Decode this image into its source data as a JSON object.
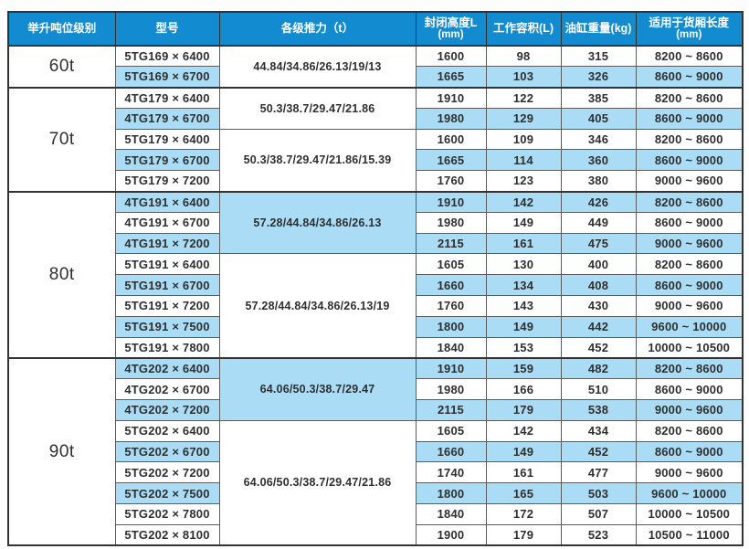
{
  "colors": {
    "header_bg": "#128bd1",
    "header_text": "#ffffff",
    "row_shade_blue": "#aadcf5",
    "row_white": "#ffffff",
    "border_dark": "#333333",
    "border_inner": "#5c5c5c",
    "body_text": "#2f2f2f"
  },
  "table": {
    "headers": {
      "tonnage": "举升吨位级别",
      "model": "型号",
      "thrust": "各级推力（t）",
      "closed_height": "封闭高度L",
      "closed_height_unit": "(mm)",
      "working_volume": "工作容积(L)",
      "cylinder_weight": "油缸重量(kg)",
      "box_length": "适用于货厢长度",
      "box_length_unit": "(mm)"
    },
    "sections": [
      {
        "tonnage": "60t",
        "groups": [
          {
            "thrust": "44.84/34.86/26.13/19/13",
            "thrust_shaded": false,
            "rows": [
              {
                "model": "5TG169 × 6400",
                "closed_height": "1600",
                "working_volume": "98",
                "cylinder_weight": "315",
                "box_length": "8200 ~ 8600",
                "shaded": false
              },
              {
                "model": "5TG169 × 6700",
                "closed_height": "1665",
                "working_volume": "103",
                "cylinder_weight": "326",
                "box_length": "8600 ~ 9000",
                "shaded": true
              }
            ]
          }
        ]
      },
      {
        "tonnage": "70t",
        "groups": [
          {
            "thrust": "50.3/38.7/29.47/21.86",
            "thrust_shaded": false,
            "rows": [
              {
                "model": "4TG179 × 6400",
                "closed_height": "1910",
                "working_volume": "122",
                "cylinder_weight": "385",
                "box_length": "8200 ~ 8600",
                "shaded": false
              },
              {
                "model": "4TG179 × 6700",
                "closed_height": "1980",
                "working_volume": "129",
                "cylinder_weight": "405",
                "box_length": "8600 ~ 9000",
                "shaded": true
              }
            ]
          },
          {
            "thrust": "50.3/38.7/29.47/21.86/15.39",
            "thrust_shaded": false,
            "rows": [
              {
                "model": "5TG179 × 6400",
                "closed_height": "1600",
                "working_volume": "109",
                "cylinder_weight": "346",
                "box_length": "8200 ~ 8600",
                "shaded": false
              },
              {
                "model": "5TG179 × 6700",
                "closed_height": "1665",
                "working_volume": "114",
                "cylinder_weight": "360",
                "box_length": "8600 ~ 9000",
                "shaded": true
              },
              {
                "model": "5TG179 × 7200",
                "closed_height": "1760",
                "working_volume": "123",
                "cylinder_weight": "380",
                "box_length": "9000 ~ 9600",
                "shaded": false
              }
            ]
          }
        ]
      },
      {
        "tonnage": "80t",
        "groups": [
          {
            "thrust": "57.28/44.84/34.86/26.13",
            "thrust_shaded": true,
            "rows": [
              {
                "model": "4TG191 × 6400",
                "closed_height": "1910",
                "working_volume": "142",
                "cylinder_weight": "426",
                "box_length": "8200 ~ 8600",
                "shaded": true
              },
              {
                "model": "4TG191 × 6700",
                "closed_height": "1980",
                "working_volume": "149",
                "cylinder_weight": "449",
                "box_length": "8600 ~ 9000",
                "shaded": false
              },
              {
                "model": "4TG191 × 7200",
                "closed_height": "2115",
                "working_volume": "161",
                "cylinder_weight": "475",
                "box_length": "9000 ~ 9600",
                "shaded": true
              }
            ]
          },
          {
            "thrust": "57.28/44.84/34.86/26.13/19",
            "thrust_shaded": false,
            "rows": [
              {
                "model": "5TG191 × 6400",
                "closed_height": "1605",
                "working_volume": "130",
                "cylinder_weight": "400",
                "box_length": "8200 ~ 8600",
                "shaded": false
              },
              {
                "model": "5TG191 × 6700",
                "closed_height": "1660",
                "working_volume": "134",
                "cylinder_weight": "408",
                "box_length": "8600 ~ 9000",
                "shaded": true
              },
              {
                "model": "5TG191 × 7200",
                "closed_height": "1760",
                "working_volume": "143",
                "cylinder_weight": "430",
                "box_length": "9000 ~ 9600",
                "shaded": false
              },
              {
                "model": "5TG191 × 7500",
                "closed_height": "1800",
                "working_volume": "149",
                "cylinder_weight": "442",
                "box_length": "9600 ~ 10000",
                "shaded": true
              },
              {
                "model": "5TG191 × 7800",
                "closed_height": "1840",
                "working_volume": "153",
                "cylinder_weight": "452",
                "box_length": "10000 ~ 10500",
                "shaded": false
              }
            ]
          }
        ]
      },
      {
        "tonnage": "90t",
        "groups": [
          {
            "thrust": "64.06/50.3/38.7/29.47",
            "thrust_shaded": true,
            "rows": [
              {
                "model": "4TG202 × 6400",
                "closed_height": "1910",
                "working_volume": "159",
                "cylinder_weight": "482",
                "box_length": "8200 ~ 8600",
                "shaded": true
              },
              {
                "model": "4TG202 × 6700",
                "closed_height": "1980",
                "working_volume": "166",
                "cylinder_weight": "510",
                "box_length": "8600 ~ 9000",
                "shaded": false
              },
              {
                "model": "4TG202 × 7200",
                "closed_height": "2115",
                "working_volume": "179",
                "cylinder_weight": "538",
                "box_length": "9000 ~ 9600",
                "shaded": true
              }
            ]
          },
          {
            "thrust": "64.06/50.3/38.7/29.47/21.86",
            "thrust_shaded": false,
            "rows": [
              {
                "model": "5TG202 × 6400",
                "closed_height": "1605",
                "working_volume": "142",
                "cylinder_weight": "434",
                "box_length": "8200 ~ 8600",
                "shaded": false
              },
              {
                "model": "5TG202 × 6700",
                "closed_height": "1660",
                "working_volume": "149",
                "cylinder_weight": "452",
                "box_length": "8600 ~ 9000",
                "shaded": true
              },
              {
                "model": "5TG202 × 7200",
                "closed_height": "1740",
                "working_volume": "161",
                "cylinder_weight": "477",
                "box_length": "9000 ~ 9600",
                "shaded": false
              },
              {
                "model": "5TG202 × 7500",
                "closed_height": "1800",
                "working_volume": "165",
                "cylinder_weight": "503",
                "box_length": "9600 ~ 10000",
                "shaded": true
              },
              {
                "model": "5TG202 × 7800",
                "closed_height": "1840",
                "working_volume": "172",
                "cylinder_weight": "507",
                "box_length": "10000 ~ 10500",
                "shaded": false
              },
              {
                "model": "5TG202 × 8100",
                "closed_height": "1900",
                "working_volume": "179",
                "cylinder_weight": "523",
                "box_length": "10500 ~ 11000",
                "shaded": false
              }
            ]
          }
        ]
      }
    ]
  }
}
